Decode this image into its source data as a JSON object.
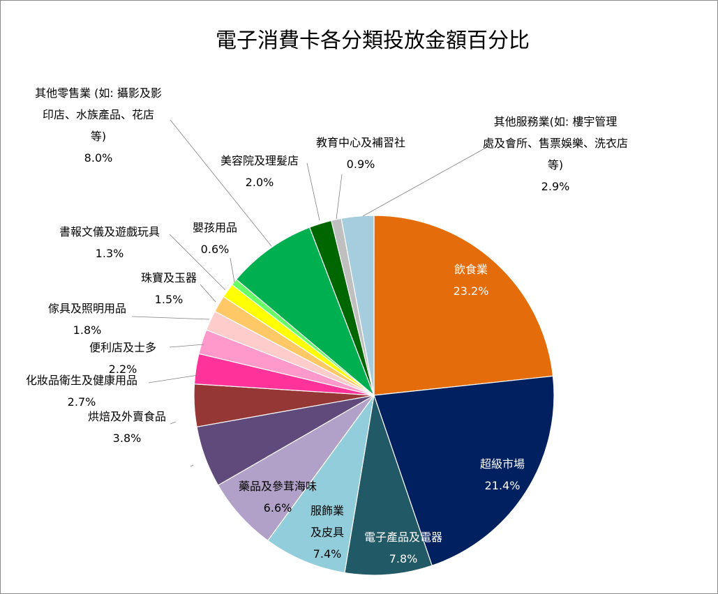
{
  "chart_data": {
    "type": "pie",
    "title": "電子消費卡各分類投放金額百分比",
    "legend": "none",
    "slices": [
      {
        "name": "飲食業",
        "value": 23.2,
        "label": "23.2%",
        "color": "#E46C0A"
      },
      {
        "name": "超級市場",
        "value": 21.4,
        "label": "21.4%",
        "color": "#002060"
      },
      {
        "name": "電子產品及電器",
        "value": 7.8,
        "label": "7.8%",
        "color": "#215967"
      },
      {
        "name": "服飾業及皮具",
        "value": 7.4,
        "label": "7.4%",
        "color": "#92CDDC"
      },
      {
        "name": "藥品及參茸海味",
        "value": 6.6,
        "label": "6.6%",
        "color": "#B1A0C7"
      },
      {
        "name": "",
        "value": 5.5,
        "label": "",
        "color": "#604A7B"
      },
      {
        "name": "烘焙及外賣食品",
        "value": 3.8,
        "label": "3.8%",
        "color": "#953735"
      },
      {
        "name": "化妝品衛生及健康用品",
        "value": 2.7,
        "label": "2.7%",
        "color": "#FF3399"
      },
      {
        "name": "便利店及士多",
        "value": 2.2,
        "label": "2.2%",
        "color": "#FF99CC"
      },
      {
        "name": "傢具及照明用品",
        "value": 1.8,
        "label": "1.8%",
        "color": "#FFCCCC"
      },
      {
        "name": "珠寶及玉器",
        "value": 1.5,
        "label": "1.5%",
        "color": "#FFC866"
      },
      {
        "name": "書報文儀及遊戲玩具",
        "value": 1.3,
        "label": "1.3%",
        "color": "#FFFF00"
      },
      {
        "name": "嬰孩用品",
        "value": 0.6,
        "label": "0.6%",
        "color": "#66FF66"
      },
      {
        "name": "其他零售業 (如: 攝影及影印店、水族產品、花店等)",
        "value": 8.0,
        "label": "8.0%",
        "color": "#00B050"
      },
      {
        "name": "美容院及理髮店",
        "value": 2.0,
        "label": "2.0%",
        "color": "#006600"
      },
      {
        "name": "教育中心及補習社",
        "value": 0.9,
        "label": "0.9%",
        "color": "#BFBFBF"
      },
      {
        "name": "其他服務業(如: 樓宇管理處及會所、售票娛樂、洗衣店等)",
        "value": 2.9,
        "label": "2.9%",
        "color": "#A5CDDD"
      }
    ]
  }
}
